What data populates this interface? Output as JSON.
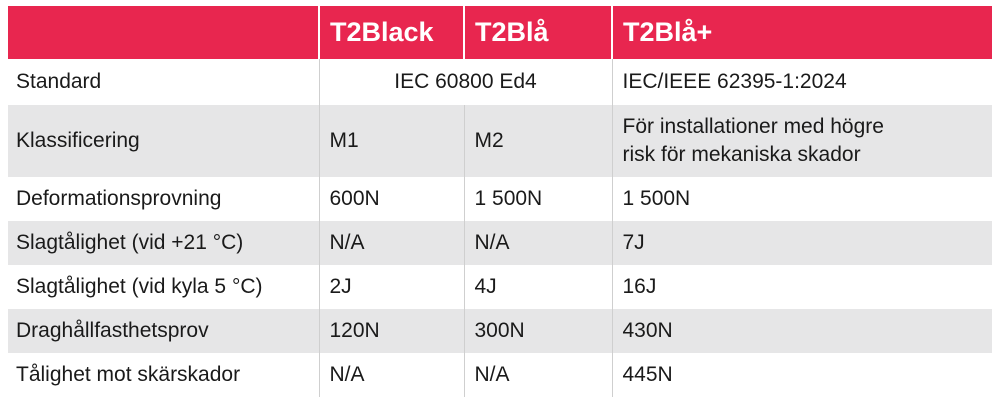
{
  "header": {
    "col0": "",
    "col1": "T2Black",
    "col2": "T2Blå",
    "col3": "T2Blå+"
  },
  "rows": {
    "standard": {
      "label": "Standard",
      "t2black_t2bla": "IEC 60800 Ed4",
      "t2blaplus": "IEC/IEEE 62395-1:2024"
    },
    "klassificering": {
      "label": "Klassificering",
      "t2black": "M1",
      "t2bla": "M2",
      "t2blaplus_line1": "För installationer med högre",
      "t2blaplus_line2": "risk för mekaniska skador"
    },
    "deformation": {
      "label": "Deformationsprovning",
      "t2black": "600N",
      "t2bla": "1 500N",
      "t2blaplus": "1 500N"
    },
    "slag21": {
      "label": "Slagtålighet (vid +21 °C)",
      "t2black": "N/A",
      "t2bla": "N/A",
      "t2blaplus": "7J"
    },
    "slag5": {
      "label": "Slagtålighet (vid kyla 5 °C)",
      "t2black": "2J",
      "t2bla": "4J",
      "t2blaplus": "16J"
    },
    "drag": {
      "label": "Draghållfasthetsprov",
      "t2black": "120N",
      "t2bla": "300N",
      "t2blaplus": "430N"
    },
    "skar": {
      "label": "Tålighet mot skärskador",
      "t2black": "N/A",
      "t2bla": "N/A",
      "t2blaplus": "445N"
    }
  },
  "colors": {
    "header_bg": "#e8264f",
    "header_text": "#ffffff",
    "stripe": "#e6e6e7"
  }
}
